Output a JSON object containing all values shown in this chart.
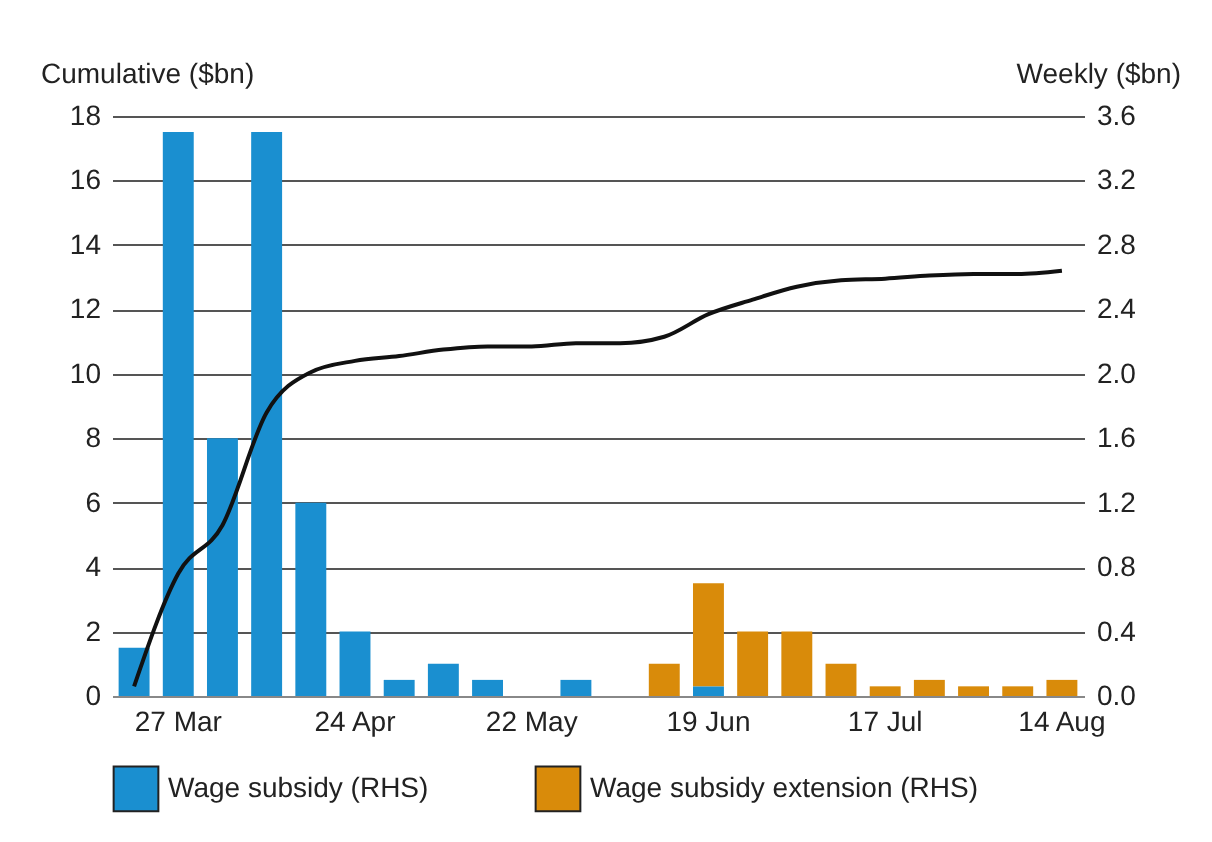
{
  "chart_data": {
    "type": "bar",
    "ylabel": "Cumulative ($bn)",
    "y2label": "Weekly ($bn)",
    "categories": [
      null,
      "27 Mar",
      null,
      null,
      null,
      "24 Apr",
      null,
      null,
      null,
      "22 May",
      null,
      null,
      null,
      "19 Jun",
      null,
      null,
      null,
      "17 Jul",
      null,
      null,
      null,
      "14 Aug"
    ],
    "series": [
      {
        "name": "Wage subsidy (RHS)",
        "axis": "y2",
        "color": "#1a8fd0",
        "values": [
          0.3,
          3.5,
          1.6,
          3.5,
          1.2,
          0.4,
          0.1,
          0.2,
          0.1,
          0,
          0.1,
          0,
          0,
          0.06,
          0,
          0,
          0,
          0,
          0,
          0,
          0,
          0
        ]
      },
      {
        "name": "Wage subsidy extension (RHS)",
        "axis": "y2",
        "color": "#d98b0a",
        "values": [
          0,
          0,
          0,
          0,
          0,
          0,
          0,
          0,
          0,
          0,
          0,
          0,
          0.2,
          0.64,
          0.4,
          0.4,
          0.2,
          0.06,
          0.1,
          0.06,
          0.06,
          0.1
        ]
      },
      {
        "type": "line",
        "color": "#111111",
        "values": [
          0.3,
          3.8,
          5.3,
          8.8,
          10.05,
          10.4,
          10.55,
          10.75,
          10.85,
          10.85,
          10.95,
          10.95,
          11.15,
          11.85,
          12.3,
          12.7,
          12.9,
          12.95,
          13.05,
          13.1,
          13.1,
          13.2
        ]
      }
    ],
    "stacked": true,
    "ylim": [
      0,
      18
    ],
    "yticks": [
      0,
      2,
      4,
      6,
      8,
      10,
      12,
      14,
      16,
      18
    ],
    "y2lim": [
      0,
      3.6
    ],
    "y2ticks": [
      {
        "value": 0,
        "label": "0.0"
      },
      {
        "value": 0.4,
        "label": "0.4"
      },
      {
        "value": 0.8,
        "label": "0.8"
      },
      {
        "value": 1.2,
        "label": "1.2"
      },
      {
        "value": 1.6,
        "label": "1.6"
      },
      {
        "value": 2,
        "label": "2.0"
      },
      {
        "value": 2.4,
        "label": "2.4"
      },
      {
        "value": 2.8,
        "label": "2.8"
      },
      {
        "value": 3.2,
        "label": "3.2"
      },
      {
        "value": 3.6,
        "label": "3.6"
      }
    ],
    "grid": "y",
    "legend": "bottom"
  }
}
